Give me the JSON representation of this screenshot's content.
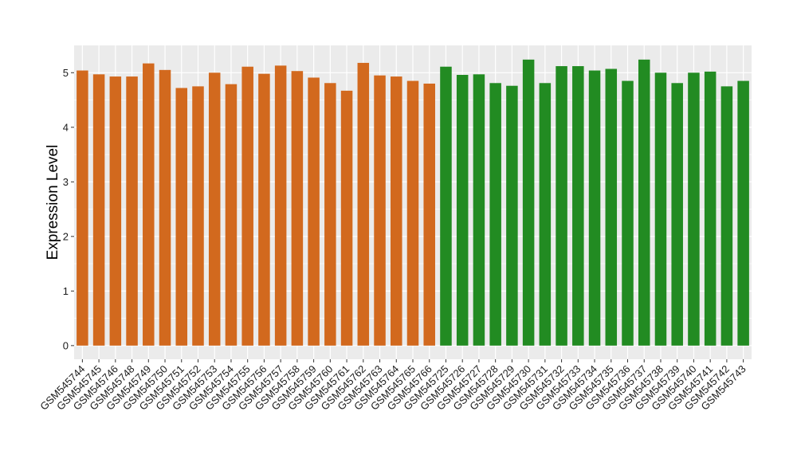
{
  "chart_data": {
    "type": "bar",
    "title": "",
    "xlabel": "",
    "ylabel": "Expression Level",
    "ylim": [
      -0.25,
      5.5
    ],
    "yticks": [
      0,
      1,
      2,
      3,
      4,
      5
    ],
    "grid": true,
    "colors": {
      "group1": "#d2691e",
      "group2": "#228b22",
      "panel": "#ebebeb",
      "gridline": "#ffffff"
    },
    "categories": [
      "GSM545744",
      "GSM545745",
      "GSM545746",
      "GSM545748",
      "GSM545749",
      "GSM545750",
      "GSM545751",
      "GSM545752",
      "GSM545753",
      "GSM545754",
      "GSM545755",
      "GSM545756",
      "GSM545757",
      "GSM545758",
      "GSM545759",
      "GSM545760",
      "GSM545761",
      "GSM545762",
      "GSM545763",
      "GSM545764",
      "GSM545765",
      "GSM545766",
      "GSM545725",
      "GSM545726",
      "GSM545727",
      "GSM545728",
      "GSM545729",
      "GSM545730",
      "GSM545731",
      "GSM545732",
      "GSM545733",
      "GSM545734",
      "GSM545735",
      "GSM545736",
      "GSM545737",
      "GSM545738",
      "GSM545739",
      "GSM545740",
      "GSM545741",
      "GSM545742",
      "GSM545743"
    ],
    "values": [
      5.04,
      4.97,
      4.93,
      4.93,
      5.17,
      5.05,
      4.72,
      4.75,
      5.0,
      4.79,
      5.11,
      4.98,
      5.13,
      5.03,
      4.91,
      4.81,
      4.67,
      5.18,
      4.95,
      4.93,
      4.85,
      4.8,
      5.11,
      4.96,
      4.97,
      4.81,
      4.76,
      5.24,
      4.81,
      5.12,
      5.12,
      5.04,
      5.07,
      4.85,
      5.24,
      5.0,
      4.81,
      5.0,
      5.02,
      4.75,
      4.85
    ],
    "groups": [
      "group1",
      "group1",
      "group1",
      "group1",
      "group1",
      "group1",
      "group1",
      "group1",
      "group1",
      "group1",
      "group1",
      "group1",
      "group1",
      "group1",
      "group1",
      "group1",
      "group1",
      "group1",
      "group1",
      "group1",
      "group1",
      "group1",
      "group2",
      "group2",
      "group2",
      "group2",
      "group2",
      "group2",
      "group2",
      "group2",
      "group2",
      "group2",
      "group2",
      "group2",
      "group2",
      "group2",
      "group2",
      "group2",
      "group2",
      "group2",
      "group2"
    ]
  }
}
